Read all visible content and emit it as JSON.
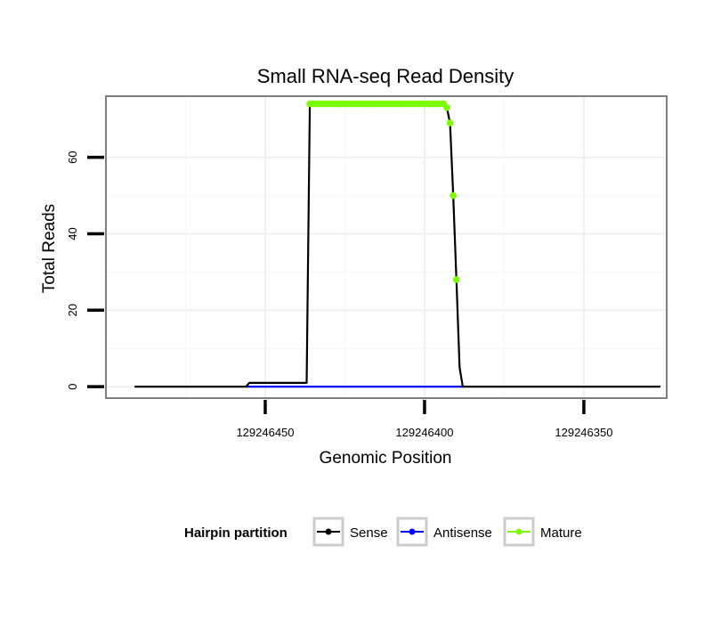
{
  "chart_data": {
    "type": "line",
    "title": "Small RNA-seq Read Density",
    "xlabel": "Genomic Position",
    "ylabel": "Total Reads",
    "x_reversed": true,
    "xlim": [
      129246500,
      129246324
    ],
    "ylim": [
      -3,
      76
    ],
    "x_ticks": [
      129246450,
      129246400,
      129246350
    ],
    "x_tick_labels": [
      "129246450",
      "129246400",
      "129246350"
    ],
    "y_ticks": [
      0,
      20,
      40,
      60
    ],
    "y_tick_labels": [
      "0",
      "20",
      "40",
      "60"
    ],
    "grid": true,
    "legend": {
      "title": "Hairpin partition",
      "position": "bottom",
      "entries": [
        {
          "label": "Sense",
          "color": "#000000"
        },
        {
          "label": "Antisense",
          "color": "#0000ff"
        },
        {
          "label": "Mature",
          "color": "#7cfc00"
        }
      ]
    },
    "series": [
      {
        "name": "Sense",
        "color": "#000000",
        "x": [
          129246491,
          129246456,
          129246455,
          129246437,
          129246436,
          129246394,
          129246393,
          129246392,
          129246391,
          129246390,
          129246389,
          129246388,
          129246387,
          129246386,
          129246385,
          129246384,
          129246383,
          129246382,
          129246381,
          129246380,
          129246379,
          129246378,
          129246377,
          129246376,
          129246375,
          129246374,
          129246373,
          129246372,
          129246371,
          129246370,
          129246369,
          129246368,
          129246367,
          129246366,
          129246365,
          129246364,
          129246363,
          129246362,
          129246361,
          129246360,
          129246359,
          129246358,
          129246357,
          129246356,
          129246355,
          129246354,
          129246353,
          129246352,
          129246351,
          129246350,
          129246349,
          129246348,
          129246347,
          129246346,
          129246345,
          129246344,
          129246343,
          129246342,
          129246341,
          129246340,
          129246339,
          129246338,
          129246337,
          129246336,
          129246335,
          129246334,
          129246333,
          129246332,
          129246331,
          129246330,
          129246329,
          129246328,
          129246327,
          129246326
        ],
        "y": [
          0,
          0,
          1,
          1,
          74,
          74,
          73,
          69,
          50,
          28,
          5,
          0,
          0,
          0,
          0,
          0,
          0,
          0,
          0,
          0,
          0,
          0,
          0,
          0,
          0,
          0,
          0,
          0,
          0,
          0,
          0,
          0,
          0,
          0,
          0,
          0,
          0,
          0,
          0,
          0,
          0,
          0,
          0,
          0,
          0,
          0,
          0,
          0,
          0,
          0,
          0,
          0,
          0,
          0,
          0,
          0,
          0,
          0,
          0,
          0,
          0,
          0,
          0,
          0,
          0,
          0,
          0,
          0,
          0,
          0,
          0,
          0,
          0,
          0
        ]
      },
      {
        "name": "Antisense",
        "color": "#0000ff",
        "x": [
          129246456,
          129246388
        ],
        "y": [
          0,
          0
        ]
      },
      {
        "name": "Mature",
        "color": "#7cfc00",
        "x": [
          129246436,
          129246435,
          129246434,
          129246433,
          129246432,
          129246431,
          129246430,
          129246429,
          129246428,
          129246427,
          129246426,
          129246425,
          129246424,
          129246423,
          129246422,
          129246421,
          129246420,
          129246419,
          129246418,
          129246417,
          129246416,
          129246415,
          129246414,
          129246413,
          129246412,
          129246411,
          129246410,
          129246409,
          129246408,
          129246407,
          129246406,
          129246405,
          129246404,
          129246403,
          129246402,
          129246401,
          129246400,
          129246399,
          129246398,
          129246397,
          129246396,
          129246395,
          129246394,
          129246393,
          129246392,
          129246391,
          129246390
        ],
        "y": [
          74,
          74,
          74,
          74,
          74,
          74,
          74,
          74,
          74,
          74,
          74,
          74,
          74,
          74,
          74,
          74,
          74,
          74,
          74,
          74,
          74,
          74,
          74,
          74,
          74,
          74,
          74,
          74,
          74,
          74,
          74,
          74,
          74,
          74,
          74,
          74,
          74,
          74,
          74,
          74,
          74,
          74,
          74,
          73,
          69,
          50,
          28
        ]
      }
    ]
  }
}
